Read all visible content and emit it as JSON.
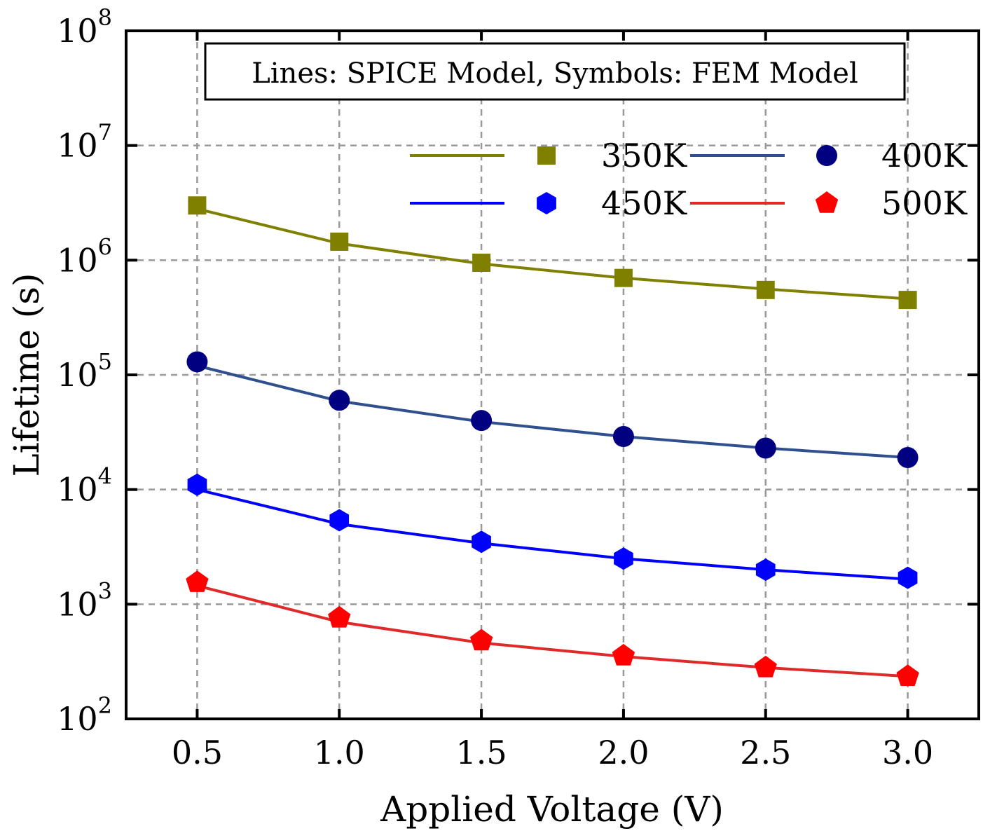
{
  "chart_data": {
    "type": "line",
    "xlabel": "Applied Voltage (V)",
    "ylabel": "Lifetime (s)",
    "annotation": "Lines: SPICE Model,  Symbols: FEM Model",
    "xlim": [
      0.25,
      3.25
    ],
    "ylim": [
      100,
      100000000
    ],
    "yscale": "log",
    "grid": true,
    "legend_position": "top-right",
    "x": [
      0.5,
      1.0,
      1.5,
      2.0,
      2.5,
      3.0
    ],
    "xticks": [
      "0.5",
      "1.0",
      "1.5",
      "2.0",
      "2.5",
      "3.0"
    ],
    "yticks": [
      {
        "base": "10",
        "exp": "2"
      },
      {
        "base": "10",
        "exp": "3"
      },
      {
        "base": "10",
        "exp": "4"
      },
      {
        "base": "10",
        "exp": "5"
      },
      {
        "base": "10",
        "exp": "6"
      },
      {
        "base": "10",
        "exp": "7"
      },
      {
        "base": "10",
        "exp": "8"
      }
    ],
    "series": [
      {
        "name": "350K",
        "color": "#808000",
        "marker": "square",
        "line": [
          2800000,
          1400000,
          930000,
          700000,
          560000,
          460000
        ],
        "symbols": [
          3000000,
          1450000,
          950000,
          700000,
          550000,
          450000
        ]
      },
      {
        "name": "400K",
        "color": "#1f3a8f",
        "line_color": "#2f4f8f",
        "marker_color": "#000080",
        "marker": "circle",
        "line": [
          120000,
          59000,
          39000,
          29000,
          23000,
          19000
        ],
        "symbols": [
          130000,
          60000,
          40000,
          29000,
          23000,
          19000
        ]
      },
      {
        "name": "450K",
        "color": "#0000ff",
        "marker": "hexagon",
        "line": [
          10000,
          5000,
          3400,
          2500,
          2000,
          1650
        ],
        "symbols": [
          11000,
          5400,
          3500,
          2500,
          2000,
          1700
        ]
      },
      {
        "name": "500K",
        "color": "#e62020",
        "line_color": "#e02a2a",
        "marker_color": "#ff0000",
        "marker": "pentagon",
        "line": [
          1450,
          700,
          460,
          350,
          280,
          235
        ],
        "symbols": [
          1550,
          760,
          480,
          355,
          280,
          235
        ]
      }
    ]
  }
}
